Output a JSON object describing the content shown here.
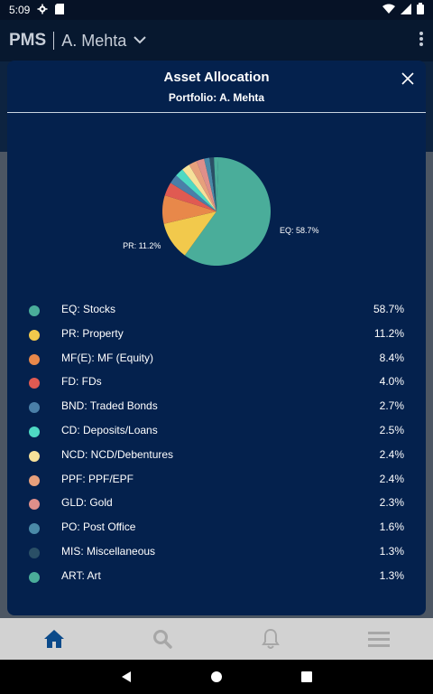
{
  "status_bar": {
    "time": "5:09",
    "icons": [
      "gear-icon",
      "sd-card-icon",
      "wifi-icon",
      "signal-icon",
      "battery-icon"
    ]
  },
  "app_bar": {
    "app_name": "PMS",
    "account_name": "A. Mehta",
    "icons": [
      "chevron-down-icon",
      "overflow-menu-icon"
    ]
  },
  "modal": {
    "title": "Asset Allocation",
    "subtitle": "Portfolio: A. Mehta",
    "close_icon": "close-icon"
  },
  "chart_data": {
    "type": "pie",
    "title": "",
    "slices": [
      {
        "label": "EQ: Stocks",
        "value": 58.7,
        "color": "#4aad9a"
      },
      {
        "label": "PR: Property",
        "value": 11.2,
        "color": "#f2c94c"
      },
      {
        "label": "MF(E): MF (Equity)",
        "value": 8.4,
        "color": "#e8884a"
      },
      {
        "label": "FD: FDs",
        "value": 4.0,
        "color": "#e05a52"
      },
      {
        "label": "BND: Traded Bonds",
        "value": 2.7,
        "color": "#4a7fa8"
      },
      {
        "label": "CD: Deposits/Loans",
        "value": 2.5,
        "color": "#4ed9c3"
      },
      {
        "label": "NCD: NCD/Debentures",
        "value": 2.4,
        "color": "#f6e19a"
      },
      {
        "label": "PPF: PPF/EPF",
        "value": 2.4,
        "color": "#e7a07c"
      },
      {
        "label": "GLD: Gold",
        "value": 2.3,
        "color": "#df8f8a"
      },
      {
        "label": "PO: Post Office",
        "value": 1.6,
        "color": "#4a8aa8"
      },
      {
        "label": "MIS: Miscellaneous",
        "value": 1.3,
        "color": "#2a4f66"
      },
      {
        "label": "ART: Art",
        "value": 1.3,
        "color": "#4aad9a"
      }
    ],
    "data_labels": [
      {
        "text": "EQ: 58.7%",
        "slice": 0
      },
      {
        "text": "PR: 11.2%",
        "slice": 1
      }
    ]
  },
  "legend": [
    {
      "label": "EQ: Stocks",
      "value": "58.7%",
      "color": "#4aad9a"
    },
    {
      "label": "PR: Property",
      "value": "11.2%",
      "color": "#f2c94c"
    },
    {
      "label": "MF(E): MF (Equity)",
      "value": "8.4%",
      "color": "#e8884a"
    },
    {
      "label": "FD: FDs",
      "value": "4.0%",
      "color": "#e05a52"
    },
    {
      "label": "BND: Traded Bonds",
      "value": "2.7%",
      "color": "#4a7fa8"
    },
    {
      "label": "CD: Deposits/Loans",
      "value": "2.5%",
      "color": "#4ed9c3"
    },
    {
      "label": "NCD: NCD/Debentures",
      "value": "2.4%",
      "color": "#f6e19a"
    },
    {
      "label": "PPF: PPF/EPF",
      "value": "2.4%",
      "color": "#e7a07c"
    },
    {
      "label": "GLD: Gold",
      "value": "2.3%",
      "color": "#df8f8a"
    },
    {
      "label": "PO: Post Office",
      "value": "1.6%",
      "color": "#4a8aa8"
    },
    {
      "label": "MIS: Miscellaneous",
      "value": "1.3%",
      "color": "#2a4f66"
    },
    {
      "label": "ART: Art",
      "value": "1.3%",
      "color": "#4aad9a"
    }
  ],
  "bottom_nav": {
    "items": [
      "home-icon",
      "search-icon",
      "bell-icon",
      "menu-icon"
    ],
    "active_color": "#0b4a8a",
    "inactive_color": "#a7a7a7"
  },
  "system_nav": {
    "items": [
      "back-icon",
      "home-circle-icon",
      "recents-icon"
    ]
  }
}
